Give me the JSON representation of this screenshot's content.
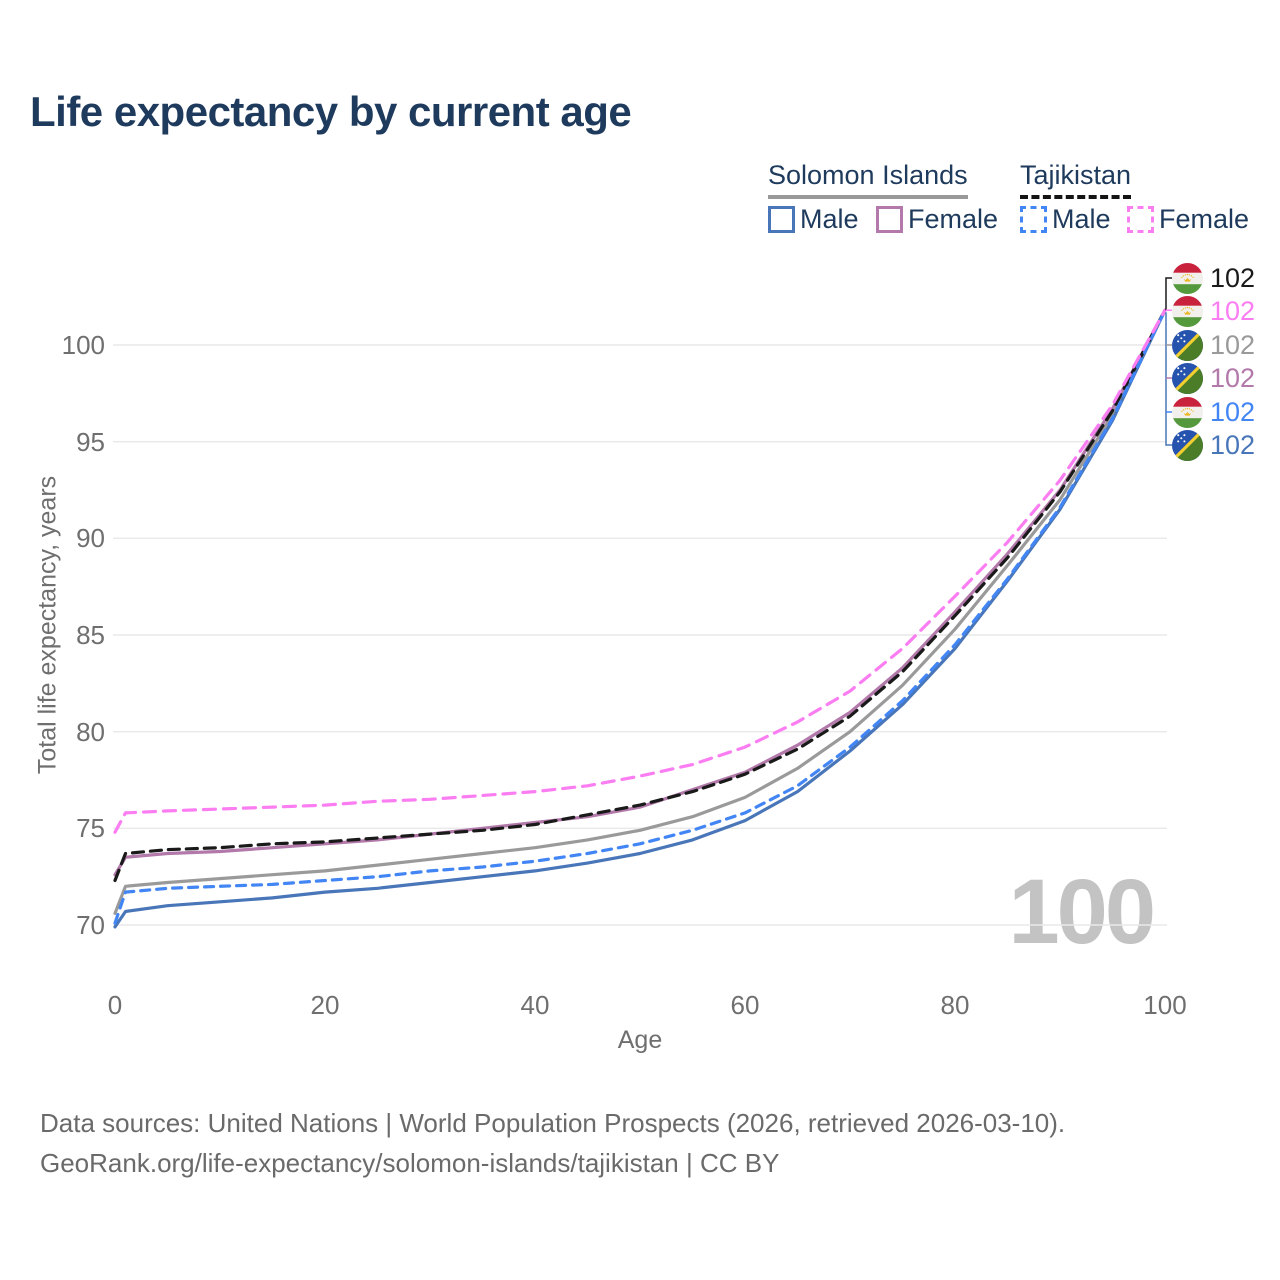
{
  "title": "Life expectancy by current age",
  "legend": {
    "groups": [
      {
        "name": "Solomon Islands",
        "underline_style": "solid",
        "underline_color": "#999999",
        "items": [
          {
            "label": "Male",
            "color": "#4876b8",
            "dashed": false
          },
          {
            "label": "Female",
            "color": "#b279aa",
            "dashed": false
          }
        ]
      },
      {
        "name": "Tajikistan",
        "underline_style": "dashed",
        "underline_color": "#141414",
        "items": [
          {
            "label": "Male",
            "color": "#4285f4",
            "dashed": true
          },
          {
            "label": "Female",
            "color": "#fb7df2",
            "dashed": true
          }
        ]
      }
    ]
  },
  "chart_data": {
    "type": "line",
    "title": "Life expectancy by current age",
    "xlabel": "Age",
    "ylabel": "Total life expectancy, years",
    "xlim": [
      0,
      100
    ],
    "ylim": [
      68.5,
      103
    ],
    "x_ticks": [
      0,
      20,
      40,
      60,
      80,
      100
    ],
    "y_ticks": [
      100,
      95,
      90,
      85,
      80,
      75,
      70
    ],
    "grid": "horizontal-only",
    "legend_position": "top-right",
    "watermark": "100",
    "ages": [
      0,
      1,
      5,
      10,
      15,
      20,
      25,
      30,
      35,
      40,
      45,
      50,
      55,
      60,
      65,
      70,
      75,
      80,
      85,
      90,
      95,
      100
    ],
    "series": [
      {
        "id": "si_total",
        "name": "Solomon Islands (both sexes)",
        "country": "Solomon Islands",
        "sex": "Both",
        "color": "#9a9a9a",
        "dash": null,
        "values": [
          70.6,
          72.0,
          72.2,
          72.4,
          72.6,
          72.8,
          73.1,
          73.4,
          73.7,
          74.0,
          74.4,
          74.9,
          75.6,
          76.6,
          78.1,
          80.0,
          82.4,
          85.3,
          88.6,
          92.0,
          96.4,
          101.8
        ]
      },
      {
        "id": "si_male",
        "name": "Solomon Islands Male",
        "country": "Solomon Islands",
        "sex": "Male",
        "color": "#4876b8",
        "dash": null,
        "values": [
          69.9,
          70.7,
          71.0,
          71.2,
          71.4,
          71.7,
          71.9,
          72.2,
          72.5,
          72.8,
          73.2,
          73.7,
          74.4,
          75.4,
          76.9,
          79.0,
          81.4,
          84.3,
          87.8,
          91.5,
          96.1,
          101.8
        ]
      },
      {
        "id": "si_female",
        "name": "Solomon Islands Female",
        "country": "Solomon Islands",
        "sex": "Female",
        "color": "#b279aa",
        "dash": null,
        "values": [
          72.6,
          73.5,
          73.7,
          73.8,
          74.0,
          74.2,
          74.4,
          74.7,
          75.0,
          75.3,
          75.6,
          76.1,
          77.0,
          77.9,
          79.3,
          81.0,
          83.3,
          86.2,
          89.2,
          92.5,
          96.7,
          101.8
        ]
      },
      {
        "id": "tj_total",
        "name": "Tajikistan (both sexes)",
        "country": "Tajikistan",
        "sex": "Both",
        "color": "#1a1a1a",
        "dash": "11,7",
        "values": [
          72.3,
          73.7,
          73.9,
          74.0,
          74.2,
          74.3,
          74.5,
          74.7,
          74.9,
          75.2,
          75.7,
          76.2,
          76.9,
          77.8,
          79.1,
          80.8,
          83.1,
          86.0,
          89.0,
          92.4,
          96.6,
          101.8
        ]
      },
      {
        "id": "tj_male",
        "name": "Tajikistan Male",
        "country": "Tajikistan",
        "sex": "Male",
        "color": "#4285f4",
        "dash": "9,7",
        "values": [
          70.1,
          71.7,
          71.9,
          72.0,
          72.1,
          72.3,
          72.5,
          72.8,
          73.0,
          73.3,
          73.7,
          74.2,
          74.9,
          75.8,
          77.2,
          79.2,
          81.6,
          84.5,
          87.9,
          91.6,
          96.2,
          101.8
        ]
      },
      {
        "id": "tj_female",
        "name": "Tajikistan Female",
        "country": "Tajikistan",
        "sex": "Female",
        "color": "#fb7df2",
        "dash": "12,8",
        "values": [
          74.8,
          75.8,
          75.9,
          76.0,
          76.1,
          76.2,
          76.4,
          76.5,
          76.7,
          76.9,
          77.2,
          77.7,
          78.3,
          79.2,
          80.5,
          82.1,
          84.3,
          87.0,
          89.8,
          93.0,
          96.9,
          101.8
        ]
      }
    ]
  },
  "end_labels": [
    {
      "series": "tj_total",
      "flag": "tajikistan",
      "value": "102",
      "color": "#1a1a1a"
    },
    {
      "series": "tj_female",
      "flag": "tajikistan",
      "value": "102",
      "color": "#fb7df2"
    },
    {
      "series": "si_total",
      "flag": "solomon-islands",
      "value": "102",
      "color": "#9a9a9a"
    },
    {
      "series": "si_female",
      "flag": "solomon-islands",
      "value": "102",
      "color": "#b279aa"
    },
    {
      "series": "tj_male",
      "flag": "tajikistan",
      "value": "102",
      "color": "#4285f4"
    },
    {
      "series": "si_male",
      "flag": "solomon-islands",
      "value": "102",
      "color": "#4876b8"
    }
  ],
  "footer": {
    "line1": "Data sources: United Nations | World Population Prospects (2026, retrieved 2026-03-10).",
    "line2": "GeoRank.org/life-expectancy/solomon-islands/tajikistan | CC BY"
  }
}
